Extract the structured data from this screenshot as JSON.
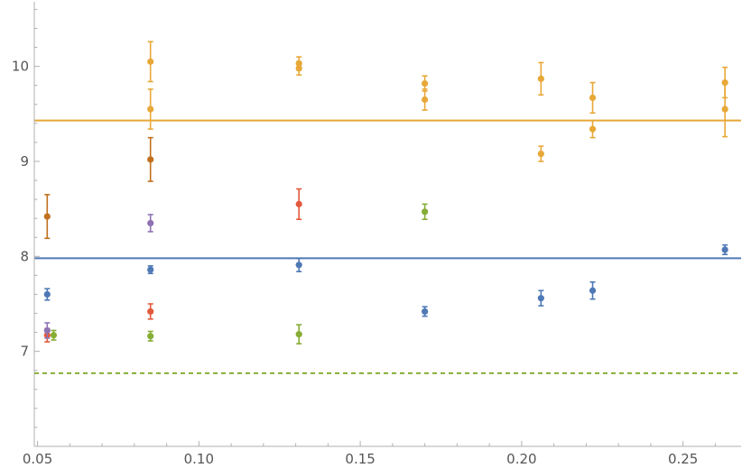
{
  "chart_data": {
    "type": "scatter",
    "title": "",
    "xlabel": "",
    "ylabel": "",
    "xlim": [
      0.049,
      0.268
    ],
    "ylim": [
      6.0,
      10.68
    ],
    "x_ticks": [
      0.05,
      0.1,
      0.15,
      0.2,
      0.25
    ],
    "x_tick_labels": [
      "0.05",
      "0.10",
      "0.15",
      "0.20",
      "0.25"
    ],
    "y_ticks": [
      7,
      8,
      9,
      10
    ],
    "y_tick_labels": [
      "7",
      "8",
      "9",
      "10"
    ],
    "grid": false,
    "legend": "none",
    "series": [
      {
        "color": "#E8A838",
        "points": [
          {
            "x": 0.085,
            "y": 10.05,
            "err": 0.21
          },
          {
            "x": 0.085,
            "y": 9.55,
            "err": 0.21
          },
          {
            "x": 0.131,
            "y": 10.03,
            "err": 0.07
          },
          {
            "x": 0.131,
            "y": 9.98,
            "err": 0.07
          },
          {
            "x": 0.17,
            "y": 9.82,
            "err": 0.08
          },
          {
            "x": 0.17,
            "y": 9.65,
            "err": 0.11
          },
          {
            "x": 0.206,
            "y": 9.87,
            "err": 0.17
          },
          {
            "x": 0.206,
            "y": 9.08,
            "err": 0.08
          },
          {
            "x": 0.222,
            "y": 9.67,
            "err": 0.16
          },
          {
            "x": 0.222,
            "y": 9.34,
            "err": 0.09
          },
          {
            "x": 0.263,
            "y": 9.83,
            "err": 0.16
          },
          {
            "x": 0.263,
            "y": 9.55,
            "err": 0.29
          }
        ]
      },
      {
        "color": "#C0701E",
        "points": [
          {
            "x": 0.053,
            "y": 8.42,
            "err": 0.23
          },
          {
            "x": 0.085,
            "y": 9.02,
            "err": 0.23
          }
        ]
      },
      {
        "color": "#E2593B",
        "points": [
          {
            "x": 0.053,
            "y": 7.17,
            "err": 0.07
          },
          {
            "x": 0.085,
            "y": 7.42,
            "err": 0.08
          },
          {
            "x": 0.131,
            "y": 8.55,
            "err": 0.16
          }
        ]
      },
      {
        "color": "#8E72B2",
        "points": [
          {
            "x": 0.053,
            "y": 7.22,
            "err": 0.08
          },
          {
            "x": 0.085,
            "y": 8.35,
            "err": 0.09
          }
        ]
      },
      {
        "color": "#86AD34",
        "points": [
          {
            "x": 0.055,
            "y": 7.17,
            "err": 0.05
          },
          {
            "x": 0.085,
            "y": 7.16,
            "err": 0.05
          },
          {
            "x": 0.131,
            "y": 7.18,
            "err": 0.1
          },
          {
            "x": 0.17,
            "y": 8.47,
            "err": 0.08
          }
        ]
      },
      {
        "color": "#4F79B5",
        "points": [
          {
            "x": 0.053,
            "y": 7.6,
            "err": 0.06
          },
          {
            "x": 0.085,
            "y": 7.86,
            "err": 0.04
          },
          {
            "x": 0.131,
            "y": 7.91,
            "err": 0.07
          },
          {
            "x": 0.17,
            "y": 7.42,
            "err": 0.05
          },
          {
            "x": 0.206,
            "y": 7.56,
            "err": 0.08
          },
          {
            "x": 0.222,
            "y": 7.64,
            "err": 0.09
          },
          {
            "x": 0.263,
            "y": 8.07,
            "err": 0.05
          }
        ]
      }
    ],
    "reference_lines": [
      {
        "y": 9.43,
        "color": "#E8A838",
        "style": "solid"
      },
      {
        "y": 7.98,
        "color": "#4F79B5",
        "style": "solid"
      },
      {
        "y": 6.77,
        "color": "#86AD34",
        "style": "dashed"
      }
    ]
  }
}
